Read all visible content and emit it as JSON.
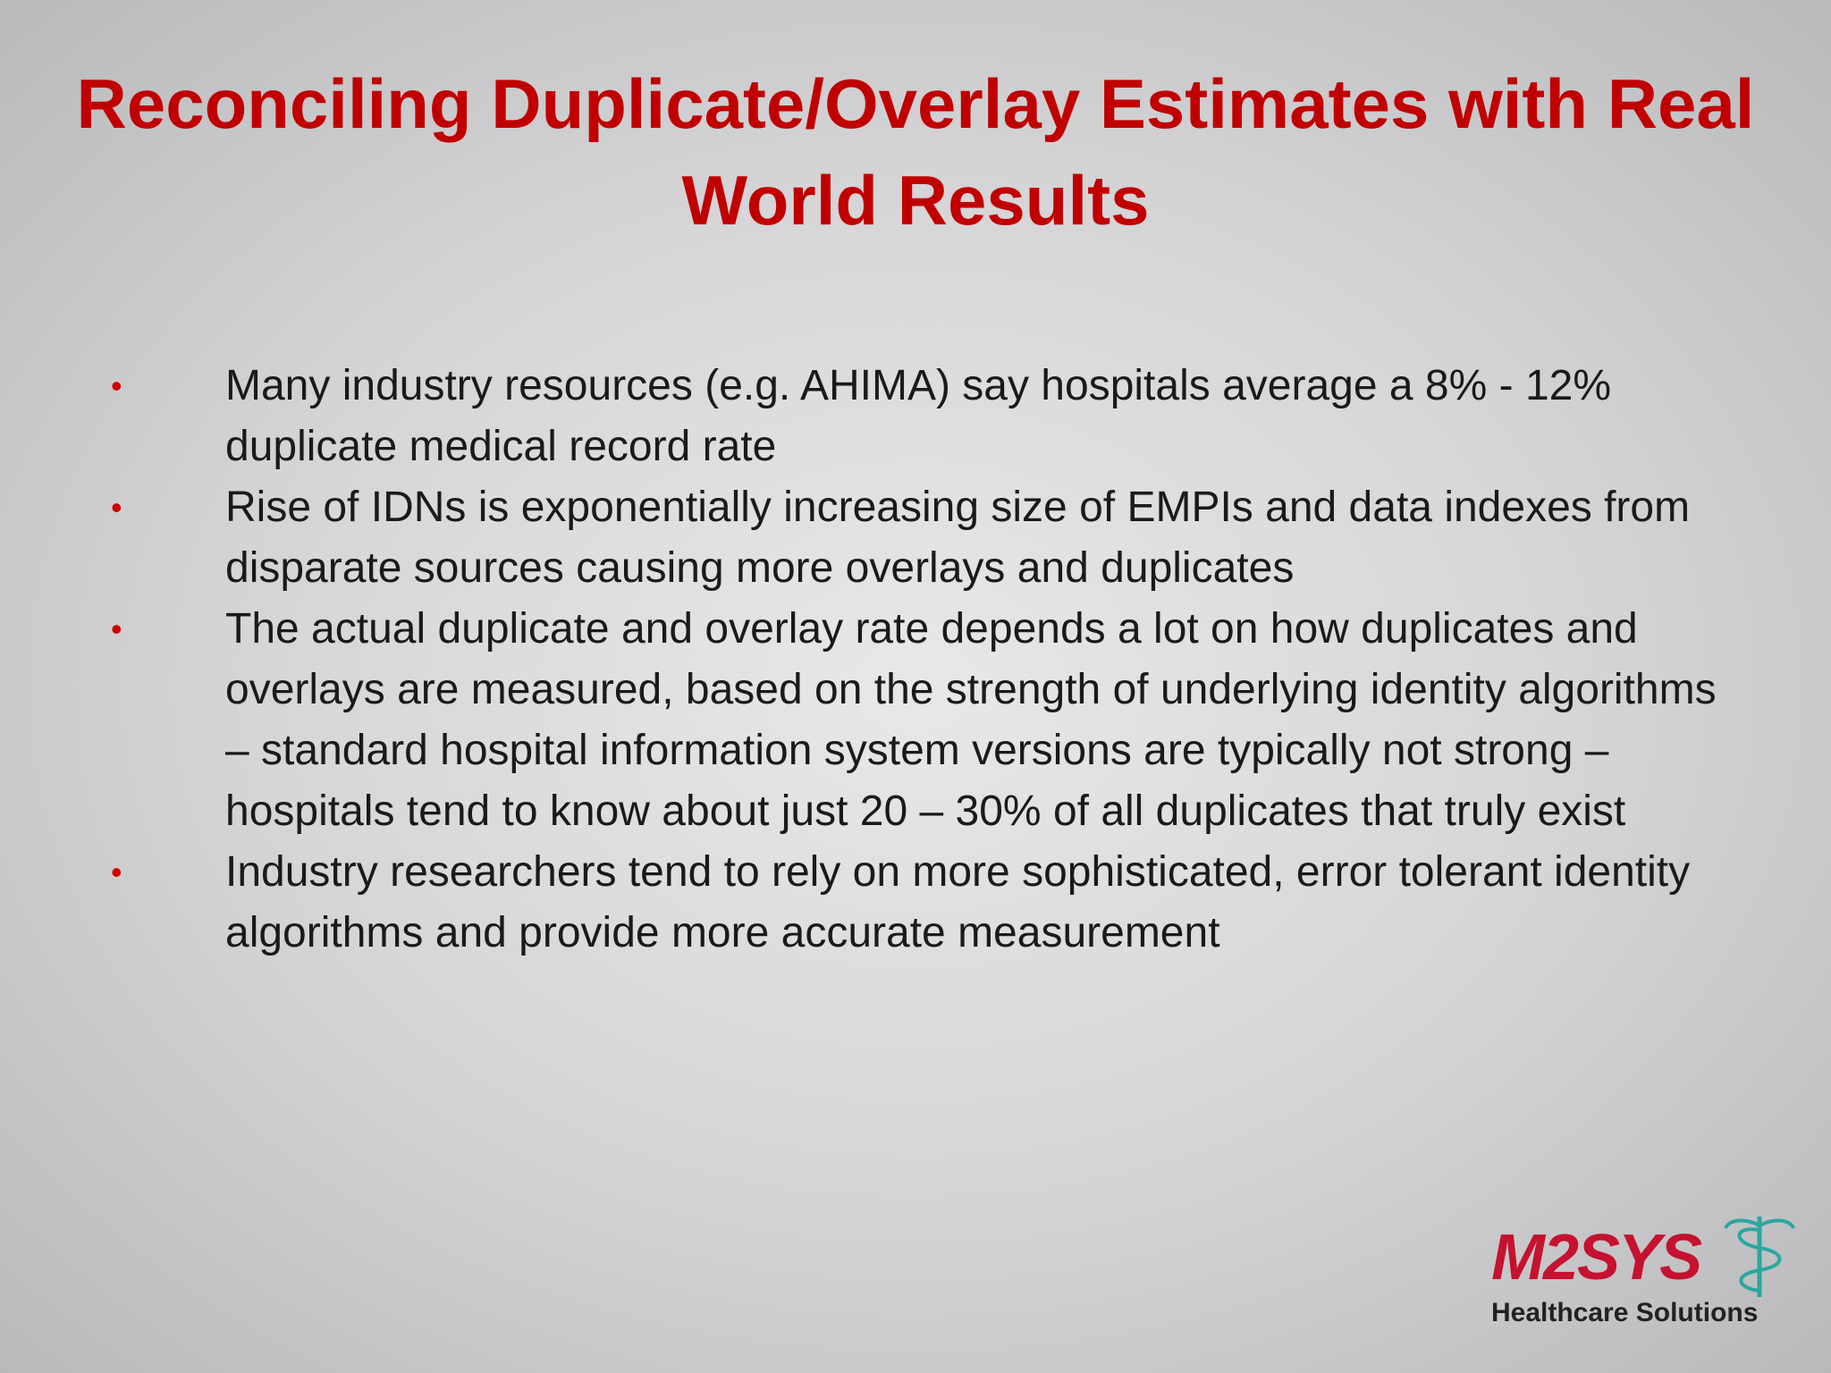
{
  "title": "Reconciling Duplicate/Overlay Estimates with Real World Results",
  "bullets": [
    "Many industry resources (e.g. AHIMA) say hospitals average a 8% - 12% duplicate medical record rate",
    "Rise of IDNs is exponentially increasing size of EMPIs and data indexes from disparate sources causing more overlays and duplicates",
    "The actual duplicate and overlay rate depends a lot on how duplicates and overlays are measured, based on the strength of underlying identity algorithms – standard hospital information system versions are typically not strong – hospitals tend to know about just 20 – 30% of all duplicates that truly exist",
    "Industry researchers tend to rely on more sophisticated, error tolerant identity algorithms and provide more accurate measurement"
  ],
  "logo": {
    "name": "M2SYS",
    "tagline": "Healthcare Solutions"
  }
}
